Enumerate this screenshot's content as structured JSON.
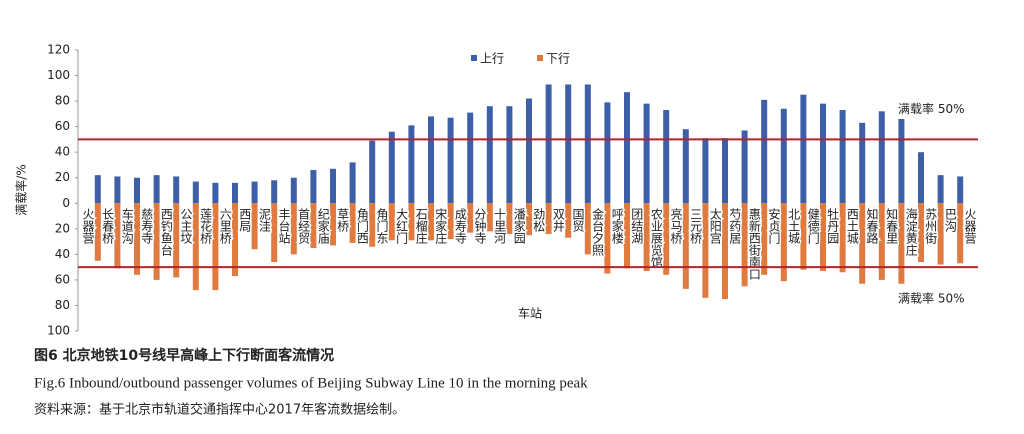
{
  "chart_data": {
    "type": "diverging-bar",
    "y_label": "满载率/%",
    "x_label": "车站",
    "stations": [
      "火器营",
      "长春桥",
      "车道沟",
      "慈寿寺",
      "西钓鱼台",
      "公主坟",
      "莲花桥",
      "六里桥",
      "西局",
      "泥洼",
      "丰台站",
      "首经贸",
      "纪家庙",
      "草桥",
      "角门西",
      "角门东",
      "大红门",
      "石榴庄",
      "宋家庄",
      "成寿寺",
      "分钟寺",
      "十里河",
      "潘家园",
      "劲松",
      "双井",
      "国贸",
      "金台夕照",
      "呼家楼",
      "团结湖",
      "农业展览馆",
      "亮马桥",
      "三元桥",
      "太阳宫",
      "芍药居",
      "惠新西街南口",
      "安贞门",
      "北土城",
      "健德门",
      "牡丹园",
      "西土城",
      "知春路",
      "知春里",
      "海淀黄庄",
      "苏州街",
      "巴沟",
      "火器营"
    ],
    "series": [
      {
        "name": "上行",
        "color": "#3d5fa8",
        "values": [
          22,
          21,
          20,
          22,
          21,
          17,
          16,
          16,
          17,
          18,
          20,
          26,
          27,
          32,
          49,
          56,
          61,
          68,
          67,
          71,
          76,
          76,
          82,
          93,
          93,
          93,
          79,
          87,
          78,
          73,
          58,
          51,
          51,
          57,
          81,
          74,
          85,
          78,
          73,
          63,
          72,
          66,
          40,
          22,
          21
        ]
      },
      {
        "name": "下行",
        "color": "#e07a3f",
        "values": [
          -45,
          -51,
          -56,
          -60,
          -58,
          -68,
          -68,
          -57,
          -36,
          -46,
          -40,
          -35,
          -33,
          -31,
          -34,
          -29,
          -29,
          -29,
          -28,
          -23,
          -22,
          -24,
          -25,
          -24,
          -27,
          -40,
          -55,
          -51,
          -53,
          -56,
          -67,
          -74,
          -75,
          -65,
          -56,
          -61,
          -52,
          -53,
          -54,
          -63,
          -60,
          -63,
          -46,
          -48,
          -47
        ]
      }
    ],
    "ylim": [
      -100,
      120
    ],
    "yticks": [
      120,
      100,
      80,
      60,
      40,
      20,
      0,
      {
        "value": -20,
        "label": "20"
      },
      {
        "value": -40,
        "label": "40"
      },
      {
        "value": -60,
        "label": "60"
      },
      {
        "value": -80,
        "label": "80"
      },
      {
        "value": -100,
        "label": "100"
      }
    ],
    "ref_lines": [
      {
        "value": 50,
        "label": "满载率 50%",
        "color": "#b3242a"
      },
      {
        "value": -50,
        "label": "满载率 50%",
        "color": "#b3242a"
      }
    ],
    "legend": "top",
    "captions": [
      "图6  北京地铁10号线早高峰上下行断面客流情况",
      "Fig.6  Inbound/outbound passenger volumes of Beijing Subway Line 10 in the morning peak",
      "资料来源：基于北京市轨道交通指挥中心2017年客流数据绘制。"
    ]
  }
}
